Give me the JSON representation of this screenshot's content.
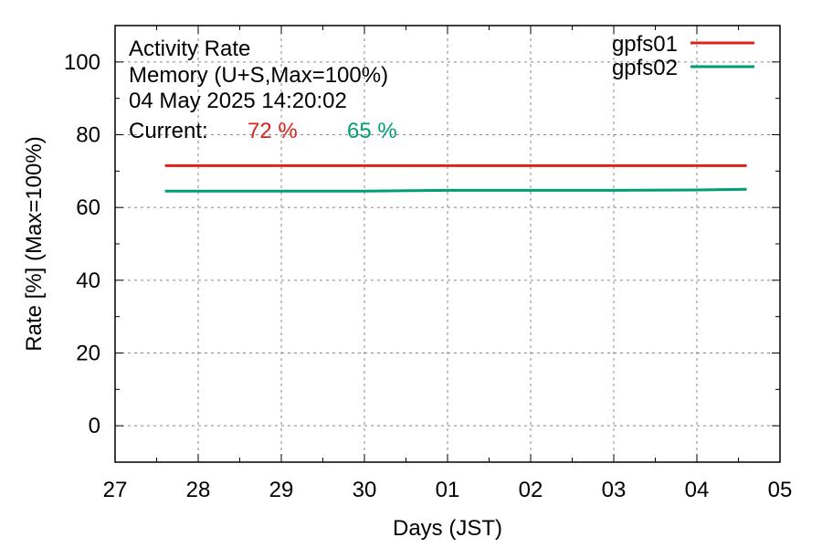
{
  "chart_data": {
    "type": "line",
    "title_lines": [
      "Activity Rate",
      "Memory (U+S,Max=100%)",
      "04 May 2025 14:20:02"
    ],
    "current": {
      "label": "Current:",
      "values": [
        "72 %",
        "65 %"
      ]
    },
    "xlabel": "Days (JST)",
    "ylabel": "Rate [%]  (Max=100%)",
    "x_ticks": [
      "27",
      "28",
      "29",
      "30",
      "01",
      "02",
      "03",
      "04",
      "05"
    ],
    "y_ticks": [
      0,
      20,
      40,
      60,
      80,
      100
    ],
    "ylim": [
      -10,
      110
    ],
    "xlim": [
      0,
      8
    ],
    "grid": true,
    "legend_position": "top-right",
    "series": [
      {
        "name": "gpfs01",
        "color": "#e0201b",
        "x": [
          0.6,
          1.0,
          2.0,
          3.0,
          4.0,
          5.0,
          6.0,
          7.0,
          7.6
        ],
        "values": [
          71.5,
          71.5,
          71.5,
          71.5,
          71.5,
          71.5,
          71.5,
          71.5,
          71.5
        ]
      },
      {
        "name": "gpfs02",
        "color": "#009e73",
        "x": [
          0.6,
          1.0,
          2.0,
          3.0,
          4.0,
          5.0,
          6.0,
          7.0,
          7.6
        ],
        "values": [
          64.5,
          64.5,
          64.5,
          64.5,
          64.7,
          64.7,
          64.7,
          64.8,
          65.0
        ]
      }
    ]
  }
}
